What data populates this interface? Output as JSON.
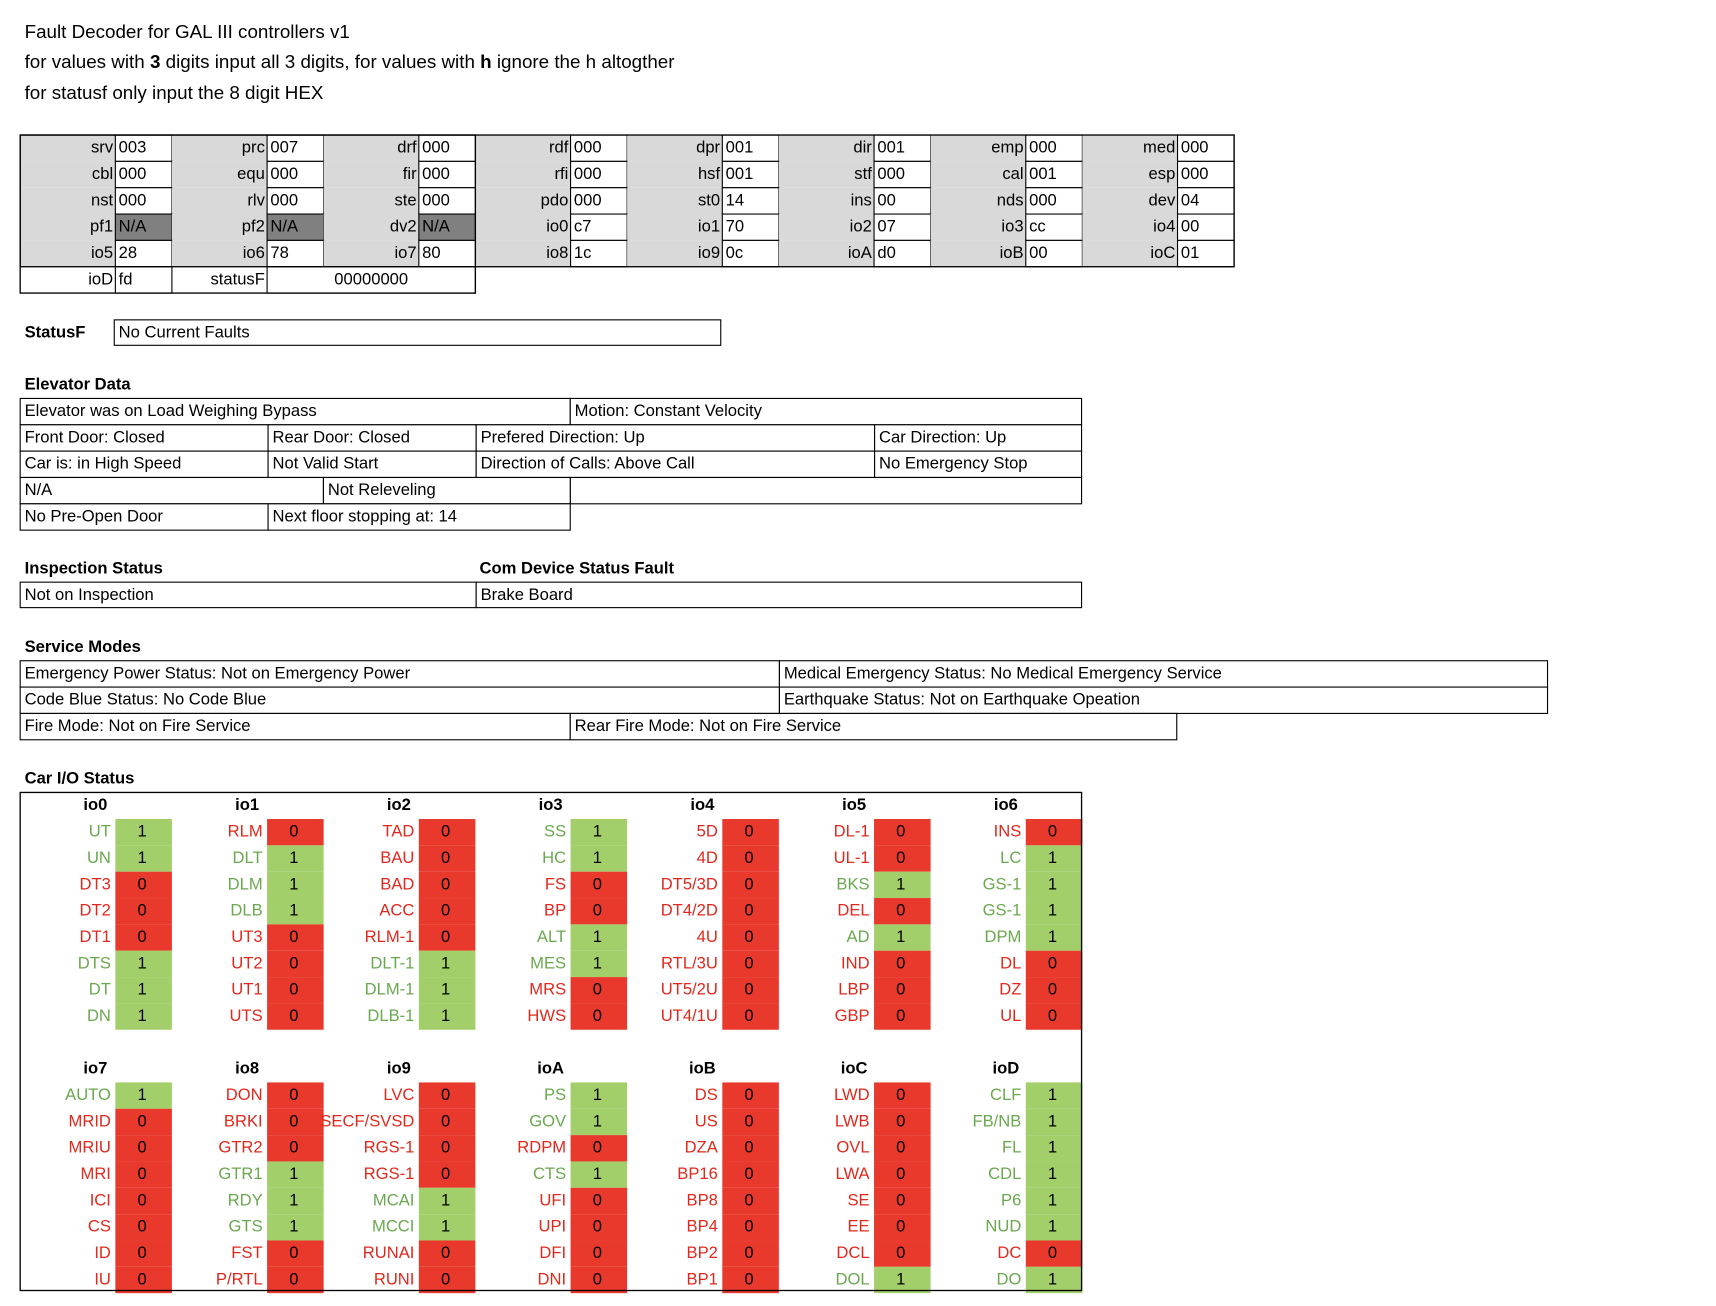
{
  "header": {
    "lines": [
      [
        "Fault Decoder for GAL III controllers v1"
      ],
      [
        "for values with ",
        "3",
        " digits input all 3 digits, for values with ",
        "h",
        " ignore the h altogther"
      ],
      [
        "for statusf only input the 8 digit HEX"
      ]
    ]
  },
  "registers": {
    "rows": [
      [
        {
          "label": "srv",
          "value": "003"
        },
        {
          "label": "prc",
          "value": "007"
        },
        {
          "label": "drf",
          "value": "000"
        },
        {
          "label": "rdf",
          "value": "000"
        },
        {
          "label": "dpr",
          "value": "001"
        },
        {
          "label": "dir",
          "value": "001"
        },
        {
          "label": "emp",
          "value": "000"
        },
        {
          "label": "med",
          "value": "000"
        }
      ],
      [
        {
          "label": "cbl",
          "value": "000"
        },
        {
          "label": "equ",
          "value": "000"
        },
        {
          "label": "fir",
          "value": "000"
        },
        {
          "label": "rfi",
          "value": "000"
        },
        {
          "label": "hsf",
          "value": "001"
        },
        {
          "label": "stf",
          "value": "000"
        },
        {
          "label": "cal",
          "value": "001"
        },
        {
          "label": "esp",
          "value": "000"
        }
      ],
      [
        {
          "label": "nst",
          "value": "000"
        },
        {
          "label": "rlv",
          "value": "000"
        },
        {
          "label": "ste",
          "value": "000"
        },
        {
          "label": "pdo",
          "value": "000"
        },
        {
          "label": "st0",
          "value": "14"
        },
        {
          "label": "ins",
          "value": "00"
        },
        {
          "label": "nds",
          "value": "000"
        },
        {
          "label": "dev",
          "value": "04"
        }
      ],
      [
        {
          "label": "pf1",
          "value": "N/A"
        },
        {
          "label": "pf2",
          "value": "N/A"
        },
        {
          "label": "dv2",
          "value": "N/A"
        },
        {
          "label": "io0",
          "value": "c7"
        },
        {
          "label": "io1",
          "value": "70"
        },
        {
          "label": "io2",
          "value": "07"
        },
        {
          "label": "io3",
          "value": "cc"
        },
        {
          "label": "io4",
          "value": "00"
        }
      ],
      [
        {
          "label": "io5",
          "value": "28"
        },
        {
          "label": "io6",
          "value": "78"
        },
        {
          "label": "io7",
          "value": "80"
        },
        {
          "label": "io8",
          "value": "1c"
        },
        {
          "label": "io9",
          "value": "0c"
        },
        {
          "label": "ioA",
          "value": "d0"
        },
        {
          "label": "ioB",
          "value": "00"
        },
        {
          "label": "ioC",
          "value": "01"
        }
      ],
      [
        {
          "label": "ioD",
          "value": "fd"
        },
        {
          "label": "statusF",
          "value": "00000000"
        }
      ]
    ]
  },
  "statusf": {
    "label": "StatusF",
    "value": "No Current Faults"
  },
  "elevator_data": {
    "title": "Elevator Data",
    "rows": [
      [
        "Elevator was on Load Weighing Bypass",
        "Motion: Constant Velocity"
      ],
      [
        "Front Door: Closed",
        "Rear Door: Closed",
        "Prefered Direction: Up",
        "Car Direction: Up"
      ],
      [
        "Car is: in High Speed",
        "Not Valid Start",
        "Direction of Calls: Above Call",
        "No Emergency Stop"
      ],
      [
        "N/A",
        "Not Releveling"
      ],
      [
        "No Pre-Open Door",
        "Next floor stopping at: 14"
      ]
    ]
  },
  "inspection": {
    "title": "Inspection Status",
    "value": "Not on Inspection"
  },
  "com_device": {
    "title": "Com Device Status Fault",
    "value": "Brake Board"
  },
  "service_modes": {
    "title": "Service Modes",
    "rows": [
      [
        "Emergency Power Status: Not on Emergency Power",
        "Medical Emergency Status: No Medical Emergency Service"
      ],
      [
        "Code Blue Status: No Code Blue",
        "Earthquake Status: Not on Earthquake Opeation"
      ],
      [
        "Fire Mode: Not on Fire Service",
        "Rear Fire Mode: Not on Fire Service"
      ]
    ]
  },
  "car_io": {
    "title": "Car I/O Status",
    "groups": [
      {
        "name": "io0",
        "signals": [
          {
            "label": "UT",
            "value": 1
          },
          {
            "label": "UN",
            "value": 1
          },
          {
            "label": "DT3",
            "value": 0
          },
          {
            "label": "DT2",
            "value": 0
          },
          {
            "label": "DT1",
            "value": 0
          },
          {
            "label": "DTS",
            "value": 1
          },
          {
            "label": "DT",
            "value": 1
          },
          {
            "label": "DN",
            "value": 1
          }
        ]
      },
      {
        "name": "io1",
        "signals": [
          {
            "label": "RLM",
            "value": 0
          },
          {
            "label": "DLT",
            "value": 1
          },
          {
            "label": "DLM",
            "value": 1
          },
          {
            "label": "DLB",
            "value": 1
          },
          {
            "label": "UT3",
            "value": 0
          },
          {
            "label": "UT2",
            "value": 0
          },
          {
            "label": "UT1",
            "value": 0
          },
          {
            "label": "UTS",
            "value": 0
          }
        ]
      },
      {
        "name": "io2",
        "signals": [
          {
            "label": "TAD",
            "value": 0
          },
          {
            "label": "BAU",
            "value": 0
          },
          {
            "label": "BAD",
            "value": 0
          },
          {
            "label": "ACC",
            "value": 0
          },
          {
            "label": "RLM-1",
            "value": 0
          },
          {
            "label": "DLT-1",
            "value": 1
          },
          {
            "label": "DLM-1",
            "value": 1
          },
          {
            "label": "DLB-1",
            "value": 1
          }
        ]
      },
      {
        "name": "io3",
        "signals": [
          {
            "label": "SS",
            "value": 1
          },
          {
            "label": "HC",
            "value": 1
          },
          {
            "label": "FS",
            "value": 0
          },
          {
            "label": "BP",
            "value": 0
          },
          {
            "label": "ALT",
            "value": 1
          },
          {
            "label": "MES",
            "value": 1
          },
          {
            "label": "MRS",
            "value": 0
          },
          {
            "label": "HWS",
            "value": 0
          }
        ]
      },
      {
        "name": "io4",
        "signals": [
          {
            "label": "5D",
            "value": 0
          },
          {
            "label": "4D",
            "value": 0
          },
          {
            "label": "DT5/3D",
            "value": 0
          },
          {
            "label": "DT4/2D",
            "value": 0
          },
          {
            "label": "4U",
            "value": 0
          },
          {
            "label": "RTL/3U",
            "value": 0
          },
          {
            "label": "UT5/2U",
            "value": 0
          },
          {
            "label": "UT4/1U",
            "value": 0
          }
        ]
      },
      {
        "name": "io5",
        "signals": [
          {
            "label": "DL-1",
            "value": 0
          },
          {
            "label": "UL-1",
            "value": 0
          },
          {
            "label": "BKS",
            "value": 1
          },
          {
            "label": "DEL",
            "value": 0
          },
          {
            "label": "AD",
            "value": 1
          },
          {
            "label": "IND",
            "value": 0
          },
          {
            "label": "LBP",
            "value": 0
          },
          {
            "label": "GBP",
            "value": 0
          }
        ]
      },
      {
        "name": "io6",
        "signals": [
          {
            "label": "INS",
            "value": 0
          },
          {
            "label": "LC",
            "value": 1
          },
          {
            "label": "GS-1",
            "value": 1
          },
          {
            "label": "GS-1",
            "value": 1
          },
          {
            "label": "DPM",
            "value": 1
          },
          {
            "label": "DL",
            "value": 0
          },
          {
            "label": "DZ",
            "value": 0
          },
          {
            "label": "UL",
            "value": 0
          }
        ]
      },
      {
        "name": "io7",
        "signals": [
          {
            "label": "AUTO",
            "value": 1
          },
          {
            "label": "MRID",
            "value": 0
          },
          {
            "label": "MRIU",
            "value": 0
          },
          {
            "label": "MRI",
            "value": 0
          },
          {
            "label": "ICI",
            "value": 0
          },
          {
            "label": "CS",
            "value": 0
          },
          {
            "label": "ID",
            "value": 0
          },
          {
            "label": "IU",
            "value": 0
          }
        ]
      },
      {
        "name": "io8",
        "signals": [
          {
            "label": "DON",
            "value": 0
          },
          {
            "label": "BRKI",
            "value": 0
          },
          {
            "label": "GTR2",
            "value": 0
          },
          {
            "label": "GTR1",
            "value": 1
          },
          {
            "label": "RDY",
            "value": 1
          },
          {
            "label": "GTS",
            "value": 1
          },
          {
            "label": "FST",
            "value": 0
          },
          {
            "label": "P/RTL",
            "value": 0
          }
        ]
      },
      {
        "name": "io9",
        "signals": [
          {
            "label": "LVC",
            "value": 0
          },
          {
            "label": "SECF/SVSD",
            "value": 0
          },
          {
            "label": "RGS-1",
            "value": 0
          },
          {
            "label": "RGS-1",
            "value": 0
          },
          {
            "label": "MCAI",
            "value": 1
          },
          {
            "label": "MCCI",
            "value": 1
          },
          {
            "label": "RUNAI",
            "value": 0
          },
          {
            "label": "RUNI",
            "value": 0
          }
        ]
      },
      {
        "name": "ioA",
        "signals": [
          {
            "label": "PS",
            "value": 1
          },
          {
            "label": "GOV",
            "value": 1
          },
          {
            "label": "RDPM",
            "value": 0
          },
          {
            "label": "CTS",
            "value": 1
          },
          {
            "label": "UFI",
            "value": 0
          },
          {
            "label": "UPI",
            "value": 0
          },
          {
            "label": "DFI",
            "value": 0
          },
          {
            "label": "DNI",
            "value": 0
          }
        ]
      },
      {
        "name": "ioB",
        "signals": [
          {
            "label": "DS",
            "value": 0
          },
          {
            "label": "US",
            "value": 0
          },
          {
            "label": "DZA",
            "value": 0
          },
          {
            "label": "BP16",
            "value": 0
          },
          {
            "label": "BP8",
            "value": 0
          },
          {
            "label": "BP4",
            "value": 0
          },
          {
            "label": "BP2",
            "value": 0
          },
          {
            "label": "BP1",
            "value": 0
          }
        ]
      },
      {
        "name": "ioC",
        "signals": [
          {
            "label": "LWD",
            "value": 0
          },
          {
            "label": "LWB",
            "value": 0
          },
          {
            "label": "OVL",
            "value": 0
          },
          {
            "label": "LWA",
            "value": 0
          },
          {
            "label": "SE",
            "value": 0
          },
          {
            "label": "EE",
            "value": 0
          },
          {
            "label": "DCL",
            "value": 0
          },
          {
            "label": "DOL",
            "value": 1
          }
        ]
      },
      {
        "name": "ioD",
        "signals": [
          {
            "label": "CLF",
            "value": 1
          },
          {
            "label": "FB/NB",
            "value": 1
          },
          {
            "label": "FL",
            "value": 1
          },
          {
            "label": "CDL",
            "value": 1
          },
          {
            "label": "P6",
            "value": 1
          },
          {
            "label": "NUD",
            "value": 1
          },
          {
            "label": "DC",
            "value": 0
          },
          {
            "label": "DO",
            "value": 1
          }
        ]
      }
    ]
  }
}
